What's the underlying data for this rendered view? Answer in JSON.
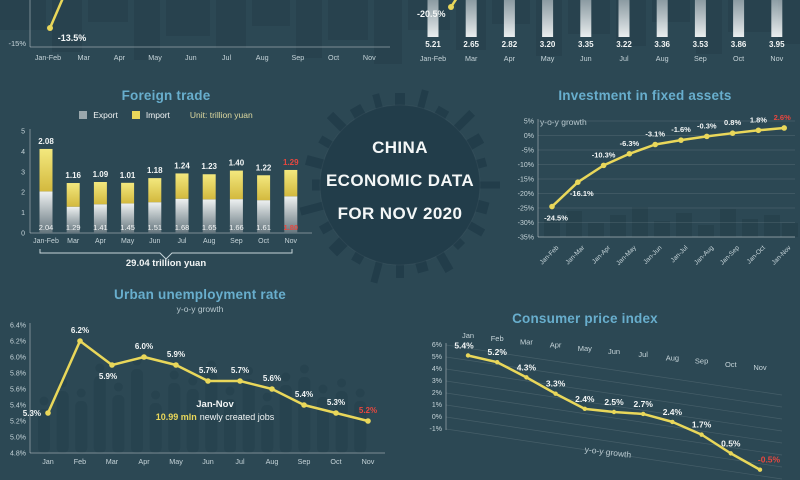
{
  "colors": {
    "background": "#2c4854",
    "title": "#68aecd",
    "yellow": "#e9d75a",
    "red": "#e8473f",
    "white": "#f3f6f6",
    "muted": "#c6d4d9",
    "subtitle_text": "#b9c9cf",
    "unit_text": "#ded9a0",
    "axis": "rgba(255,255,255,0.38)",
    "grid": "rgba(255,255,255,0.12)",
    "silhouette": "#27424e",
    "badge_fill": "#223d4a",
    "bar_gray_top": "#eef1f1",
    "bar_gray_bottom": "#64757d",
    "bar_yellow_top": "#f3e87e",
    "bar_yellow_bottom": "#d3b93e"
  },
  "badge": {
    "line1": "CHINA",
    "line2": "ECONOMIC DATA",
    "line3": "FOR NOV 2020"
  },
  "chart_data": [
    {
      "id": "top-left-cropped-line",
      "type": "line",
      "cropped": true,
      "categories": [
        "Jan-Feb",
        "Mar",
        "Apr",
        "May",
        "Jun",
        "Jul",
        "Aug",
        "Sep",
        "Oct",
        "Nov"
      ],
      "labeled_points": [
        {
          "category": "Jan-Feb",
          "value": -13.5,
          "label": "-13.5%"
        }
      ],
      "visible_yticks": [
        "-15%"
      ]
    },
    {
      "id": "top-right-cropped-bars",
      "type": "bar",
      "cropped": true,
      "categories": [
        "Jan-Feb",
        "Mar",
        "Apr",
        "May",
        "Jun",
        "Jul",
        "Aug",
        "Sep",
        "Oct",
        "Nov"
      ],
      "values": [
        5.21,
        2.65,
        2.82,
        3.2,
        3.35,
        3.22,
        3.36,
        3.53,
        3.86,
        3.95
      ],
      "value_labels": [
        "5.21",
        "2.65",
        "2.82",
        "3.20",
        "3.35",
        "3.22",
        "3.36",
        "3.53",
        "3.86",
        "3.95"
      ],
      "line_labeled_points": [
        {
          "category": "Jan-Feb",
          "value": -20.5,
          "label": "-20.5%"
        }
      ]
    },
    {
      "id": "foreign-trade",
      "type": "bar",
      "stacked": true,
      "title": "Foreign trade",
      "unit": "Unit: trillion yuan",
      "categories": [
        "Jan-Feb",
        "Mar",
        "Apr",
        "May",
        "Jun",
        "Jul",
        "Aug",
        "Sep",
        "Oct",
        "Nov"
      ],
      "series": [
        {
          "name": "Export",
          "values": [
            2.04,
            1.29,
            1.41,
            1.45,
            1.51,
            1.68,
            1.65,
            1.66,
            1.61,
            1.8
          ],
          "value_labels": [
            "2.04",
            "1.29",
            "1.41",
            "1.45",
            "1.51",
            "1.68",
            "1.65",
            "1.66",
            "1.61",
            "1.80"
          ]
        },
        {
          "name": "Import",
          "values": [
            2.08,
            1.16,
            1.09,
            1.01,
            1.18,
            1.24,
            1.23,
            1.4,
            1.22,
            1.29
          ],
          "value_labels": [
            "2.08",
            "1.16",
            "1.09",
            "1.01",
            "1.18",
            "1.24",
            "1.23",
            "1.40",
            "1.22",
            "1.29"
          ]
        }
      ],
      "yticks": [
        "0",
        "1",
        "2",
        "3",
        "4",
        "5"
      ],
      "ylim": [
        0,
        5
      ],
      "highlight_last_category": true,
      "total_label": "29.04 trillion yuan"
    },
    {
      "id": "investment-fixed-assets",
      "type": "line",
      "title": "Investment in fixed assets",
      "subtitle": "y-o-y growth",
      "categories": [
        "Jan-Feb",
        "Jan-Mar",
        "Jan-Apr",
        "Jan-May",
        "Jan-Jun",
        "Jan-Jul",
        "Jan-Aug",
        "Jan-Sep",
        "Jan-Oct",
        "Jan-Nov"
      ],
      "values": [
        -24.5,
        -16.1,
        -10.3,
        -6.3,
        -3.1,
        -1.6,
        -0.3,
        0.8,
        1.8,
        2.6
      ],
      "value_labels": [
        "-24.5%",
        "-16.1%",
        "-10.3%",
        "-6.3%",
        "-3.1%",
        "-1.6%",
        "-0.3%",
        "0.8%",
        "1.8%",
        "2.6%"
      ],
      "yticks": [
        "5%",
        "0%",
        "-5%",
        "-10%",
        "-15%",
        "-20%",
        "-25%",
        "-30%",
        "-35%"
      ],
      "ylim": [
        -35,
        5
      ],
      "highlight_last_category": true
    },
    {
      "id": "urban-unemployment-rate",
      "type": "line",
      "title": "Urban unemployment rate",
      "subtitle": "y-o-y growth",
      "categories": [
        "Jan",
        "Feb",
        "Mar",
        "Apr",
        "May",
        "Jun",
        "Jul",
        "Aug",
        "Sep",
        "Oct",
        "Nov"
      ],
      "values": [
        5.3,
        6.2,
        5.9,
        6.0,
        5.9,
        5.7,
        5.7,
        5.6,
        5.4,
        5.3,
        5.2
      ],
      "value_labels": [
        "5.3%",
        "6.2%",
        "5.9%",
        "6.0%",
        "5.9%",
        "5.7%",
        "5.7%",
        "5.6%",
        "5.4%",
        "5.3%",
        "5.2%"
      ],
      "yticks": [
        "6.4%",
        "6.2%",
        "6.0%",
        "5.8%",
        "5.6%",
        "5.4%",
        "5.2%",
        "5.0%",
        "4.8%"
      ],
      "ylim": [
        4.8,
        6.4
      ],
      "highlight_last_category": true,
      "annotation": {
        "line1": "Jan-Nov",
        "highlight": "10.99 mln",
        "rest": "newly created jobs"
      }
    },
    {
      "id": "consumer-price-index",
      "type": "line",
      "style": "3d-perspective",
      "title": "Consumer price index",
      "footer": "y-o-y growth",
      "categories": [
        "Jan",
        "Feb",
        "Mar",
        "Apr",
        "May",
        "Jun",
        "Jul",
        "Aug",
        "Sep",
        "Oct",
        "Nov"
      ],
      "values": [
        5.4,
        5.2,
        4.3,
        3.3,
        2.4,
        2.5,
        2.7,
        2.4,
        1.7,
        0.5,
        -0.5
      ],
      "value_labels": [
        "5.4%",
        "5.2%",
        "4.3%",
        "3.3%",
        "2.4%",
        "2.5%",
        "2.7%",
        "2.4%",
        "1.7%",
        "0.5%",
        "-0.5%"
      ],
      "yticks": [
        "6%",
        "5%",
        "4%",
        "3%",
        "2%",
        "1%",
        "0%",
        "-1%"
      ],
      "highlight_last_category": true
    }
  ]
}
